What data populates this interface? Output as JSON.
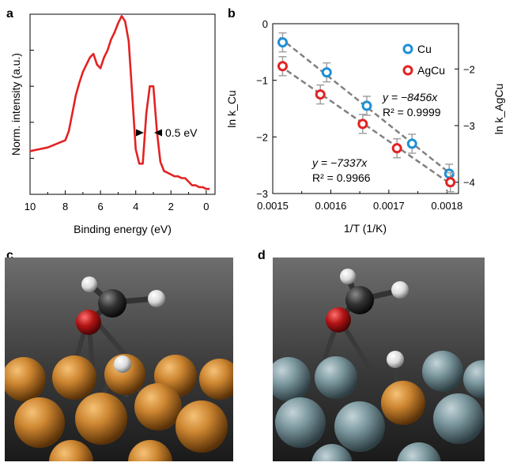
{
  "panels": {
    "a": "a",
    "b": "b",
    "c": "c",
    "d": "d"
  },
  "chart_data": [
    {
      "type": "line",
      "panel": "a",
      "xlabel": "Binding energy (eV)",
      "ylabel": "Norm. intensity (a.u.)",
      "xlim": [
        10,
        -0.5
      ],
      "ylim": [
        0,
        1
      ],
      "xticks": [
        "10",
        "8",
        "6",
        "4",
        "2",
        "0"
      ],
      "color": "#e32222",
      "annotation": "0.5 eV",
      "x": [
        10.0,
        9.5,
        9.0,
        8.5,
        8.0,
        7.8,
        7.6,
        7.4,
        7.2,
        7.0,
        6.8,
        6.6,
        6.4,
        6.2,
        6.0,
        5.8,
        5.6,
        5.4,
        5.2,
        5.0,
        4.8,
        4.6,
        4.4,
        4.2,
        4.0,
        3.8,
        3.6,
        3.4,
        3.2,
        3.0,
        2.8,
        2.6,
        2.4,
        2.2,
        2.0,
        1.8,
        1.6,
        1.4,
        1.2,
        1.0,
        0.8,
        0.6,
        0.4,
        0.2,
        0.0,
        -0.2
      ],
      "y": [
        0.24,
        0.25,
        0.26,
        0.28,
        0.3,
        0.35,
        0.45,
        0.55,
        0.62,
        0.68,
        0.72,
        0.76,
        0.78,
        0.72,
        0.7,
        0.76,
        0.8,
        0.86,
        0.9,
        0.95,
        0.99,
        0.96,
        0.85,
        0.55,
        0.25,
        0.17,
        0.17,
        0.45,
        0.6,
        0.6,
        0.35,
        0.18,
        0.13,
        0.12,
        0.11,
        0.1,
        0.1,
        0.09,
        0.09,
        0.07,
        0.05,
        0.05,
        0.04,
        0.04,
        0.03,
        0.03
      ]
    },
    {
      "type": "scatter",
      "panel": "b",
      "xlabel": "1/T (1/K)",
      "ylabel_left": "ln k_Cu",
      "ylabel_right": "ln k_AgCu",
      "xlim": [
        0.0015,
        0.00182
      ],
      "ylim": [
        -3,
        0
      ],
      "ylim_right": [
        -4.2,
        -1.2
      ],
      "xticks": [
        "0.0015",
        "0.0016",
        "0.0017",
        "0.0018"
      ],
      "yticks_left": [
        "0",
        "−1",
        "−2",
        "−3"
      ],
      "yticks_right": [
        "−2",
        "−3",
        "−4"
      ],
      "legend_position": "top-right",
      "series": [
        {
          "name": "Cu",
          "color": "#1f8fd6",
          "axis": "left",
          "x": [
            0.001517,
            0.001593,
            0.001662,
            0.00174,
            0.001804
          ],
          "y": [
            -0.33,
            -0.86,
            -1.45,
            -2.12,
            -2.65
          ],
          "fit": {
            "label": "y = −8456x",
            "r2": "R² = 0.9999"
          }
        },
        {
          "name": "AgCu",
          "color": "#e32222",
          "axis": "right",
          "x": [
            0.001517,
            0.001582,
            0.001655,
            0.001714,
            0.001806
          ],
          "y": [
            -1.95,
            -2.45,
            -2.97,
            -3.4,
            -4.0
          ],
          "fit": {
            "label": "y = −7337x",
            "r2": "R² = 0.9966"
          }
        }
      ]
    }
  ],
  "images": {
    "c": {
      "surface_color": "#c9852b",
      "adsorbate_color": "#c9852b"
    },
    "d": {
      "surface_color": "#7e9aa3",
      "adsorbate_color": "#c9852b"
    }
  }
}
